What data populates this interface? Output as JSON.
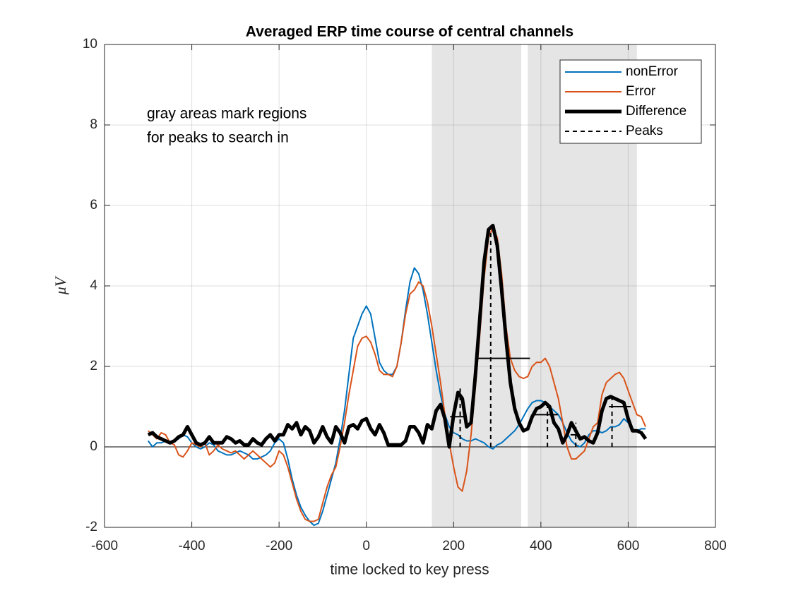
{
  "chart_data": {
    "type": "line",
    "title": "Averaged ERP time course of central channels",
    "xlabel": "time locked to key press",
    "ylabel": "μV",
    "annotation": [
      "gray areas mark regions",
      "for peaks to search in"
    ],
    "xlim": [
      -600,
      800
    ],
    "xticks": [
      -600,
      -400,
      -200,
      0,
      200,
      400,
      600,
      800
    ],
    "ylim": [
      -2,
      10
    ],
    "yticks": [
      -2,
      0,
      2,
      4,
      6,
      8,
      10
    ],
    "grid": true,
    "legend": "upper right",
    "shaded_regions": [
      {
        "from": 150,
        "to": 355
      },
      {
        "from": 370,
        "to": 620
      }
    ],
    "x": [
      -500,
      -490,
      -480,
      -470,
      -460,
      -450,
      -440,
      -430,
      -420,
      -410,
      -400,
      -390,
      -380,
      -370,
      -360,
      -350,
      -340,
      -330,
      -320,
      -310,
      -300,
      -290,
      -280,
      -270,
      -260,
      -250,
      -240,
      -230,
      -220,
      -210,
      -200,
      -190,
      -180,
      -170,
      -160,
      -150,
      -140,
      -130,
      -120,
      -110,
      -100,
      -90,
      -80,
      -70,
      -60,
      -50,
      -40,
      -30,
      -20,
      -10,
      0,
      10,
      20,
      30,
      40,
      50,
      60,
      70,
      80,
      90,
      100,
      110,
      120,
      130,
      140,
      150,
      160,
      170,
      180,
      190,
      200,
      210,
      220,
      230,
      240,
      250,
      260,
      270,
      280,
      290,
      300,
      310,
      320,
      330,
      340,
      350,
      360,
      370,
      380,
      390,
      400,
      410,
      420,
      430,
      440,
      450,
      460,
      470,
      480,
      490,
      500,
      510,
      520,
      530,
      540,
      550,
      560,
      570,
      580,
      590,
      600,
      610,
      620,
      630,
      640
    ],
    "series": [
      {
        "name": "nonError",
        "color": "#0072BD",
        "width": 2,
        "values": [
          0.15,
          0.0,
          0.1,
          0.1,
          0.15,
          0.1,
          0.15,
          0.2,
          0.3,
          0.25,
          0.1,
          0.0,
          -0.05,
          0.0,
          0.1,
          0.05,
          -0.1,
          -0.15,
          -0.2,
          -0.2,
          -0.15,
          -0.1,
          -0.15,
          -0.2,
          -0.3,
          -0.3,
          -0.25,
          -0.2,
          -0.1,
          0.1,
          0.2,
          0.1,
          -0.3,
          -0.8,
          -1.2,
          -1.5,
          -1.7,
          -1.85,
          -1.95,
          -1.9,
          -1.6,
          -1.2,
          -0.8,
          -0.4,
          0.2,
          0.9,
          1.8,
          2.7,
          3.0,
          3.3,
          3.5,
          3.3,
          2.7,
          2.1,
          1.9,
          1.8,
          1.8,
          2.0,
          2.6,
          3.4,
          4.1,
          4.45,
          4.3,
          3.9,
          3.3,
          2.6,
          1.9,
          1.3,
          0.8,
          0.5,
          0.35,
          0.3,
          0.2,
          0.15,
          0.15,
          0.2,
          0.15,
          0.1,
          0.0,
          -0.05,
          0.05,
          0.1,
          0.2,
          0.3,
          0.4,
          0.55,
          0.75,
          0.95,
          1.1,
          1.15,
          1.15,
          1.1,
          1.0,
          0.9,
          0.8,
          0.6,
          0.35,
          0.15,
          0.05,
          0.0,
          0.1,
          0.3,
          0.4,
          0.4,
          0.35,
          0.4,
          0.5,
          0.5,
          0.55,
          0.7,
          0.6,
          0.45,
          0.4,
          0.45,
          0.45
        ]
      },
      {
        "name": "Error",
        "color": "#D95319",
        "width": 2,
        "values": [
          0.4,
          0.3,
          0.2,
          0.35,
          0.3,
          0.1,
          0.05,
          -0.2,
          -0.25,
          -0.1,
          0.1,
          0.05,
          0.0,
          0.1,
          -0.2,
          -0.1,
          0.05,
          -0.05,
          -0.1,
          -0.15,
          -0.1,
          -0.2,
          -0.3,
          -0.2,
          -0.1,
          -0.2,
          -0.3,
          -0.4,
          -0.5,
          -0.4,
          -0.1,
          -0.2,
          -0.5,
          -0.9,
          -1.3,
          -1.6,
          -1.8,
          -1.85,
          -1.85,
          -1.8,
          -1.4,
          -1.0,
          -0.7,
          -0.5,
          0.0,
          0.6,
          1.3,
          1.9,
          2.5,
          2.7,
          2.75,
          2.6,
          2.3,
          1.9,
          1.8,
          1.8,
          1.75,
          2.0,
          2.6,
          3.3,
          3.8,
          3.9,
          4.1,
          4.0,
          3.6,
          3.0,
          2.3,
          1.6,
          0.8,
          0.1,
          -0.5,
          -1.0,
          -1.1,
          -0.6,
          0.3,
          1.5,
          2.8,
          4.2,
          5.2,
          5.45,
          5.2,
          4.3,
          3.0,
          2.2,
          1.9,
          1.75,
          1.7,
          1.75,
          2.0,
          2.1,
          2.1,
          2.2,
          2.0,
          1.6,
          1.2,
          0.6,
          0.0,
          -0.3,
          -0.3,
          -0.2,
          -0.1,
          0.2,
          0.5,
          0.6,
          1.3,
          1.6,
          1.7,
          1.8,
          1.85,
          1.7,
          1.4,
          1.1,
          0.8,
          0.75,
          0.5
        ]
      },
      {
        "name": "Difference",
        "color": "#000000",
        "width": 5,
        "values": [
          0.3,
          0.35,
          0.25,
          0.2,
          0.15,
          0.1,
          0.15,
          0.25,
          0.3,
          0.5,
          0.3,
          0.1,
          0.05,
          0.1,
          0.25,
          0.1,
          0.1,
          0.1,
          0.25,
          0.2,
          0.1,
          0.15,
          0.05,
          0.05,
          0.2,
          0.1,
          0.05,
          0.2,
          0.3,
          0.15,
          0.3,
          0.3,
          0.55,
          0.45,
          0.6,
          0.3,
          0.5,
          0.4,
          0.1,
          0.25,
          0.5,
          0.25,
          0.1,
          0.5,
          0.35,
          0.1,
          0.5,
          0.55,
          0.45,
          0.65,
          0.7,
          0.45,
          0.3,
          0.55,
          0.35,
          0.05,
          0.05,
          0.05,
          0.05,
          0.15,
          0.5,
          0.5,
          0.35,
          0.1,
          0.55,
          0.45,
          0.9,
          1.05,
          0.7,
          0.0,
          0.8,
          1.35,
          1.2,
          0.5,
          0.6,
          1.8,
          3.2,
          4.6,
          5.4,
          5.5,
          5.0,
          3.9,
          2.7,
          1.6,
          0.95,
          0.6,
          0.4,
          0.45,
          0.75,
          0.95,
          1.0,
          1.1,
          1.0,
          0.6,
          0.45,
          0.1,
          0.3,
          0.6,
          0.4,
          0.2,
          0.25,
          0.15,
          0.1,
          0.35,
          0.9,
          1.2,
          1.25,
          1.2,
          1.15,
          1.1,
          0.7,
          0.4,
          0.4,
          0.35,
          0.2
        ]
      },
      {
        "name": "Peaks",
        "color": "#000000",
        "dashed": true,
        "x": [
          215,
          285,
          415,
          480,
          563
        ],
        "values": [
          1.45,
          5.5,
          1.1,
          0.6,
          1.25
        ],
        "widths": [
          {
            "from": 192,
            "to": 224,
            "level": 0.75
          },
          {
            "from": 250,
            "to": 375,
            "level": 2.2
          },
          {
            "from": 386,
            "to": 439,
            "level": 0.8
          },
          {
            "from": 468,
            "to": 487,
            "level": 0.3
          },
          {
            "from": 556,
            "to": 606,
            "level": 1.0
          }
        ]
      }
    ]
  }
}
